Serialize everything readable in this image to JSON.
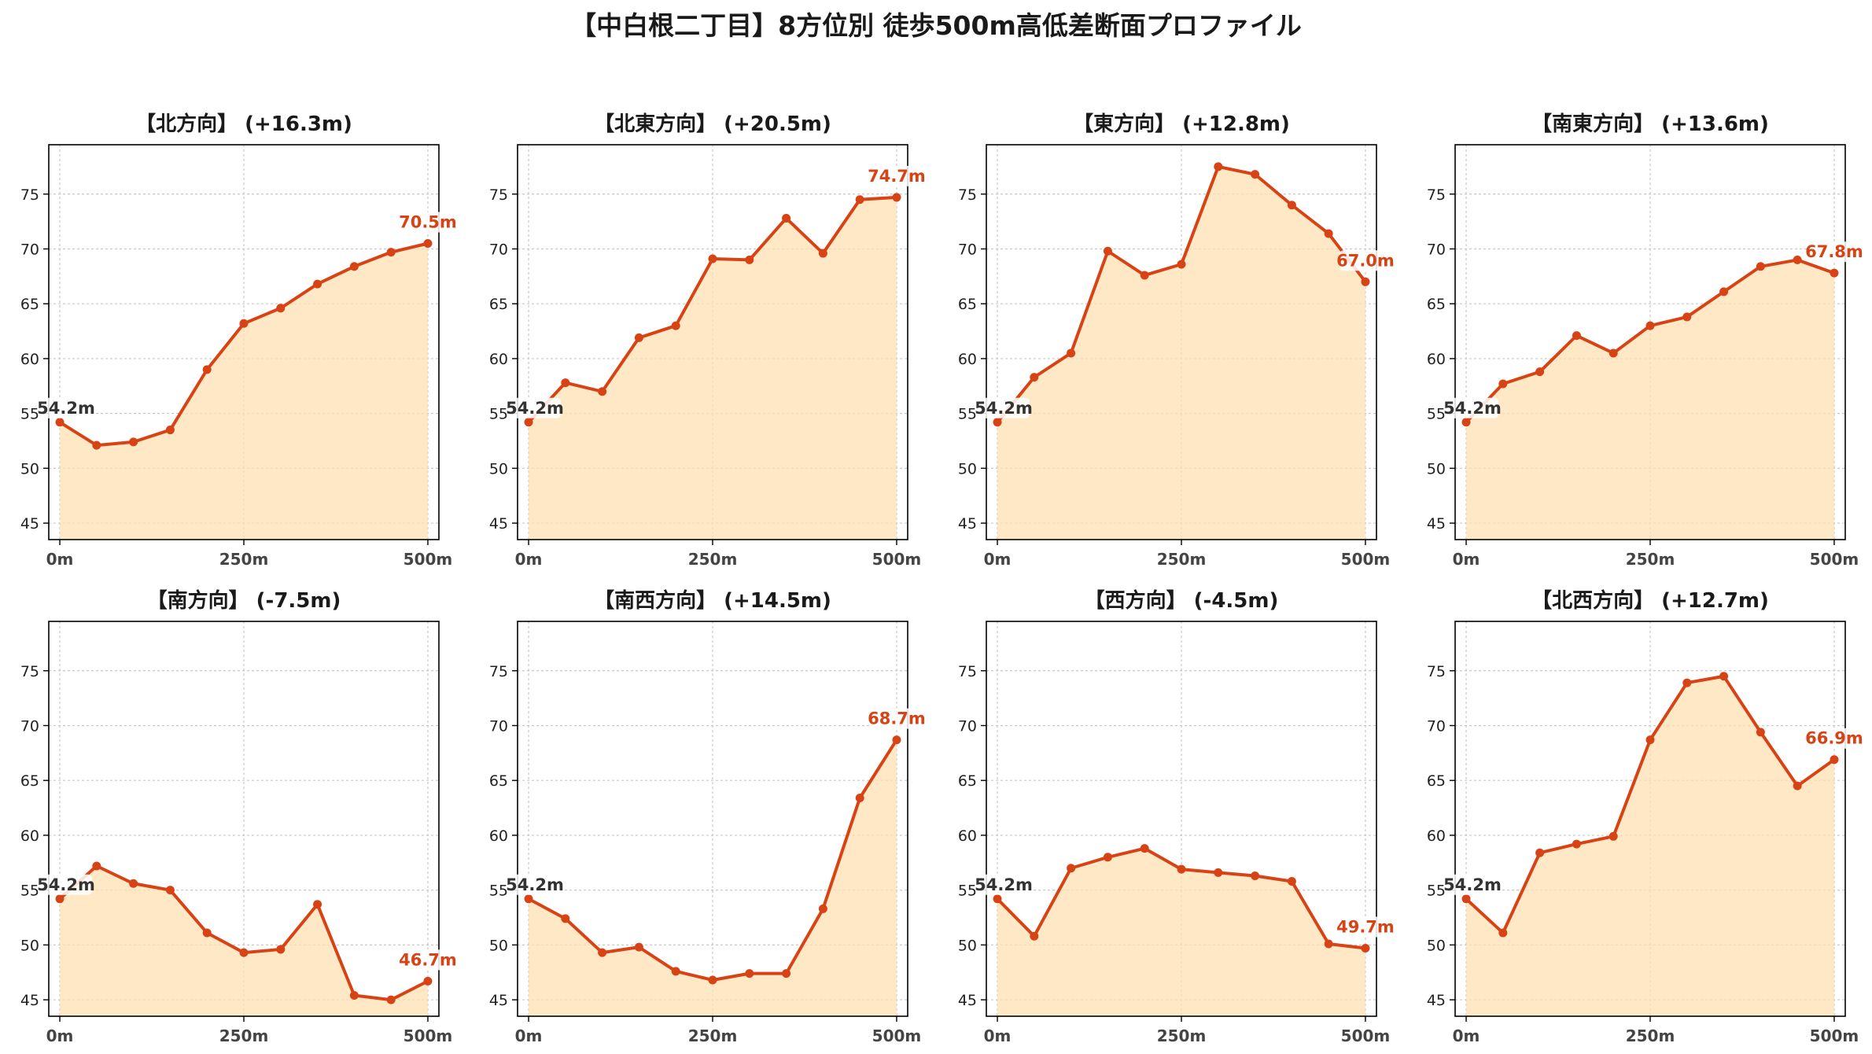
{
  "title": "【中白根二丁目】8方位別 徒歩500m高低差断面プロファイル",
  "colors": {
    "line": "#d84315",
    "fill": "#ffe0b2",
    "start_label": "#333333",
    "end_label": "#d84315",
    "grid": "#c8c8c8",
    "axes": "#000000"
  },
  "chart_data": [
    {
      "type": "area",
      "title": "【北方向】 (+16.3m)",
      "x": [
        0,
        50,
        100,
        150,
        200,
        250,
        300,
        350,
        400,
        450,
        500
      ],
      "values": [
        54.2,
        52.1,
        52.4,
        53.5,
        59.0,
        63.2,
        64.6,
        66.8,
        68.4,
        69.7,
        70.5
      ],
      "xticks": [
        "0m",
        "250m",
        "500m"
      ],
      "xtick_values": [
        0,
        250,
        500
      ],
      "yticks": [
        "45",
        "50",
        "55",
        "60",
        "65",
        "70",
        "75"
      ],
      "ylim": [
        43.5,
        79.5
      ],
      "xlim": [
        -15,
        515
      ],
      "start_label": "54.2m",
      "end_label": "70.5m",
      "grid": true
    },
    {
      "type": "area",
      "title": "【北東方向】 (+20.5m)",
      "x": [
        0,
        50,
        100,
        150,
        200,
        250,
        300,
        350,
        400,
        450,
        500
      ],
      "values": [
        54.2,
        57.8,
        57.0,
        61.9,
        63.0,
        69.1,
        69.0,
        72.8,
        69.6,
        74.5,
        74.7
      ],
      "xticks": [
        "0m",
        "250m",
        "500m"
      ],
      "xtick_values": [
        0,
        250,
        500
      ],
      "yticks": [
        "45",
        "50",
        "55",
        "60",
        "65",
        "70",
        "75"
      ],
      "ylim": [
        43.5,
        79.5
      ],
      "xlim": [
        -15,
        515
      ],
      "start_label": "54.2m",
      "end_label": "74.7m",
      "grid": true
    },
    {
      "type": "area",
      "title": "【東方向】 (+12.8m)",
      "x": [
        0,
        50,
        100,
        150,
        200,
        250,
        300,
        350,
        400,
        450,
        500
      ],
      "values": [
        54.2,
        58.3,
        60.5,
        69.8,
        67.6,
        68.6,
        77.5,
        76.8,
        74.0,
        71.4,
        67.0
      ],
      "xticks": [
        "0m",
        "250m",
        "500m"
      ],
      "xtick_values": [
        0,
        250,
        500
      ],
      "yticks": [
        "45",
        "50",
        "55",
        "60",
        "65",
        "70",
        "75"
      ],
      "ylim": [
        43.5,
        79.5
      ],
      "xlim": [
        -15,
        515
      ],
      "start_label": "54.2m",
      "end_label": "67.0m",
      "grid": true
    },
    {
      "type": "area",
      "title": "【南東方向】 (+13.6m)",
      "x": [
        0,
        50,
        100,
        150,
        200,
        250,
        300,
        350,
        400,
        450,
        500
      ],
      "values": [
        54.2,
        57.7,
        58.8,
        62.1,
        60.5,
        63.0,
        63.8,
        66.1,
        68.4,
        69.0,
        67.8
      ],
      "xticks": [
        "0m",
        "250m",
        "500m"
      ],
      "xtick_values": [
        0,
        250,
        500
      ],
      "yticks": [
        "45",
        "50",
        "55",
        "60",
        "65",
        "70",
        "75"
      ],
      "ylim": [
        43.5,
        79.5
      ],
      "xlim": [
        -15,
        515
      ],
      "start_label": "54.2m",
      "end_label": "67.8m",
      "grid": true
    },
    {
      "type": "area",
      "title": "【南方向】 (-7.5m)",
      "x": [
        0,
        50,
        100,
        150,
        200,
        250,
        300,
        350,
        400,
        450,
        500
      ],
      "values": [
        54.2,
        57.2,
        55.6,
        55.0,
        51.1,
        49.3,
        49.6,
        53.7,
        45.4,
        45.0,
        46.7
      ],
      "xticks": [
        "0m",
        "250m",
        "500m"
      ],
      "xtick_values": [
        0,
        250,
        500
      ],
      "yticks": [
        "45",
        "50",
        "55",
        "60",
        "65",
        "70",
        "75"
      ],
      "ylim": [
        43.5,
        79.5
      ],
      "xlim": [
        -15,
        515
      ],
      "start_label": "54.2m",
      "end_label": "46.7m",
      "grid": true
    },
    {
      "type": "area",
      "title": "【南西方向】 (+14.5m)",
      "x": [
        0,
        50,
        100,
        150,
        200,
        250,
        300,
        350,
        400,
        450,
        500
      ],
      "values": [
        54.2,
        52.4,
        49.3,
        49.8,
        47.6,
        46.8,
        47.4,
        47.4,
        53.3,
        63.4,
        68.7
      ],
      "xticks": [
        "0m",
        "250m",
        "500m"
      ],
      "xtick_values": [
        0,
        250,
        500
      ],
      "yticks": [
        "45",
        "50",
        "55",
        "60",
        "65",
        "70",
        "75"
      ],
      "ylim": [
        43.5,
        79.5
      ],
      "xlim": [
        -15,
        515
      ],
      "start_label": "54.2m",
      "end_label": "68.7m",
      "grid": true
    },
    {
      "type": "area",
      "title": "【西方向】 (-4.5m)",
      "x": [
        0,
        50,
        100,
        150,
        200,
        250,
        300,
        350,
        400,
        450,
        500
      ],
      "values": [
        54.2,
        50.8,
        57.0,
        58.0,
        58.8,
        56.9,
        56.6,
        56.3,
        55.8,
        50.1,
        49.7
      ],
      "xticks": [
        "0m",
        "250m",
        "500m"
      ],
      "xtick_values": [
        0,
        250,
        500
      ],
      "yticks": [
        "45",
        "50",
        "55",
        "60",
        "65",
        "70",
        "75"
      ],
      "ylim": [
        43.5,
        79.5
      ],
      "xlim": [
        -15,
        515
      ],
      "start_label": "54.2m",
      "end_label": "49.7m",
      "grid": true
    },
    {
      "type": "area",
      "title": "【北西方向】 (+12.7m)",
      "x": [
        0,
        50,
        100,
        150,
        200,
        250,
        300,
        350,
        400,
        450,
        500
      ],
      "values": [
        54.2,
        51.1,
        58.4,
        59.2,
        59.9,
        68.7,
        73.9,
        74.5,
        69.4,
        64.5,
        66.9
      ],
      "xticks": [
        "0m",
        "250m",
        "500m"
      ],
      "xtick_values": [
        0,
        250,
        500
      ],
      "yticks": [
        "45",
        "50",
        "55",
        "60",
        "65",
        "70",
        "75"
      ],
      "ylim": [
        43.5,
        79.5
      ],
      "xlim": [
        -15,
        515
      ],
      "start_label": "54.2m",
      "end_label": "66.9m",
      "grid": true
    }
  ]
}
